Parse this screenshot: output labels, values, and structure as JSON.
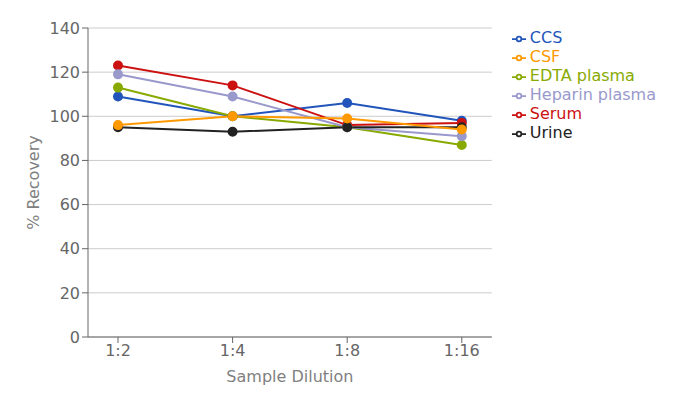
{
  "chart_data": {
    "type": "line",
    "xlabel": "Sample Dilution",
    "ylabel": "% Recovery",
    "categories": [
      "1:2",
      "1:4",
      "1:8",
      "1:16"
    ],
    "series": [
      {
        "name": "CCS",
        "color": "#2255bb",
        "marker": "circle",
        "values": [
          109,
          100,
          106,
          98
        ]
      },
      {
        "name": "Serum",
        "color": "#cc1111",
        "marker": "circle",
        "values": [
          123,
          114,
          96,
          97
        ]
      },
      {
        "name": "EDTA plasma",
        "color": "#88aa00",
        "marker": "circle",
        "values": [
          113,
          100,
          95,
          87
        ]
      },
      {
        "name": "Heparin plasma",
        "color": "#9999cc",
        "marker": "circle",
        "values": [
          119,
          109,
          95,
          91
        ]
      },
      {
        "name": "Urine",
        "color": "#222222",
        "marker": "circle",
        "values": [
          95,
          93,
          95,
          95
        ]
      },
      {
        "name": "CSF",
        "color": "#ff9900",
        "marker": "circle",
        "values": [
          96,
          100,
          99,
          94
        ]
      }
    ],
    "ylim": [
      0,
      140
    ],
    "yticks": [
      0,
      20,
      40,
      60,
      80,
      100,
      120,
      140
    ],
    "grid": true,
    "legend": "right"
  }
}
